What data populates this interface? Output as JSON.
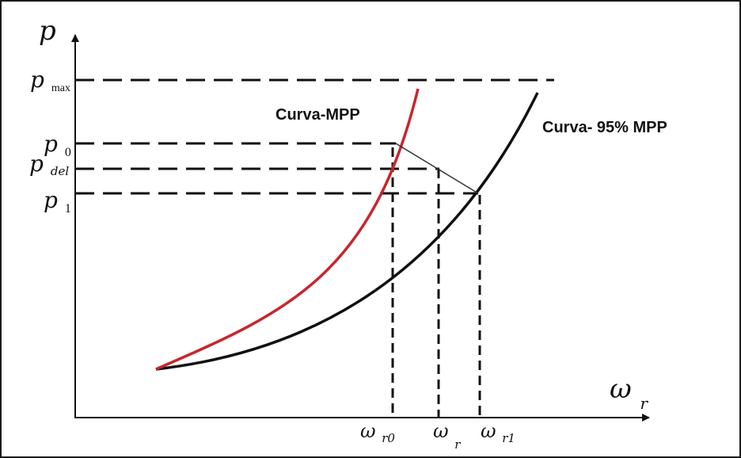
{
  "axes": {
    "y_label": "p",
    "x_label_main": "ω",
    "x_label_sub": "r"
  },
  "y_ticks": {
    "pmax": {
      "main": "p",
      "sub": "max"
    },
    "p0": {
      "main": "p",
      "sub": "0"
    },
    "pdel": {
      "main": "p",
      "sub": "del"
    },
    "p1": {
      "main": "p",
      "sub": "1"
    }
  },
  "x_ticks": {
    "wr0": {
      "main": "ω",
      "sub": "r0"
    },
    "wr": {
      "main": "ω",
      "sub": "r"
    },
    "wr1": {
      "main": "ω",
      "sub": "r1"
    }
  },
  "curves": {
    "mpp": {
      "label": "Curva-MPP",
      "color": "#c8252c"
    },
    "mpp95": {
      "label": "Curva- 95% MPP",
      "color": "#111111"
    }
  }
}
